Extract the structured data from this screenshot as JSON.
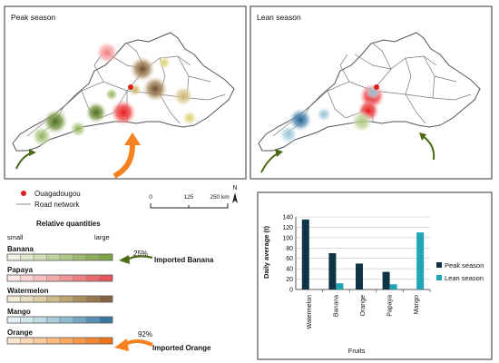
{
  "maps": {
    "peak_title": "Peak season",
    "lean_title": "Lean season"
  },
  "legend": {
    "city_label": "Ouagadougou",
    "road_label": "Road network",
    "scale": {
      "ticks": [
        "0",
        "125",
        "250 km"
      ]
    },
    "north": "N",
    "quantities_title": "Relative quantities",
    "small": "small",
    "large": "large",
    "fruits": [
      {
        "name": "Banana",
        "colors": [
          "#eef3e6",
          "#dfe9cf",
          "#cfdeb6",
          "#bfd29e",
          "#aec687",
          "#9dba70",
          "#8cae5a",
          "#7ba247"
        ]
      },
      {
        "name": "Papaya",
        "colors": [
          "#fde6e6",
          "#fad3d3",
          "#f7bfc0",
          "#f4aaab",
          "#f09597",
          "#ec8083",
          "#e86a6e",
          "#e3565a"
        ]
      },
      {
        "name": "Watermelon",
        "colors": [
          "#f1ead6",
          "#e7dcbd",
          "#ddcea4",
          "#cfbb8a",
          "#bea472",
          "#ab8d5e",
          "#97774e",
          "#84623f"
        ]
      },
      {
        "name": "Mango",
        "colors": [
          "#e4f1f4",
          "#d2e6ec",
          "#bfdbe4",
          "#a8ccda",
          "#8fbbcf",
          "#73a7c2",
          "#568fb1",
          "#3a77a0"
        ]
      },
      {
        "name": "Orange",
        "colors": [
          "#fde7d1",
          "#fcd8b5",
          "#fbc999",
          "#fab97d",
          "#f9a862",
          "#f89748",
          "#f5852f",
          "#f27217"
        ]
      }
    ],
    "imported_banana": {
      "pct": "25%",
      "label": "Imported Banana"
    },
    "imported_orange": {
      "pct": "92%",
      "label": "Imported Orange"
    }
  },
  "colors": {
    "peak": "#0e3446",
    "lean": "#1fa5b5",
    "arrow_green": "#4c6b16",
    "arrow_orange": "#f6821f",
    "city": "#e0201f"
  },
  "chart_data": {
    "type": "bar",
    "categories": [
      "Watermelon",
      "Banana",
      "Orange",
      "Papaya",
      "Mango"
    ],
    "series": [
      {
        "name": "Peak season",
        "values": [
          135,
          70,
          50,
          34,
          0
        ]
      },
      {
        "name": "Lean season",
        "values": [
          0,
          12,
          0,
          10,
          110
        ]
      }
    ],
    "ylabel": "Daily average (t)",
    "xlabel": "Fruits",
    "ylim": [
      0,
      140
    ],
    "yticks": [
      "0",
      "20",
      "40",
      "60",
      "80",
      "100",
      "120",
      "140"
    ],
    "legend_position": "right"
  }
}
